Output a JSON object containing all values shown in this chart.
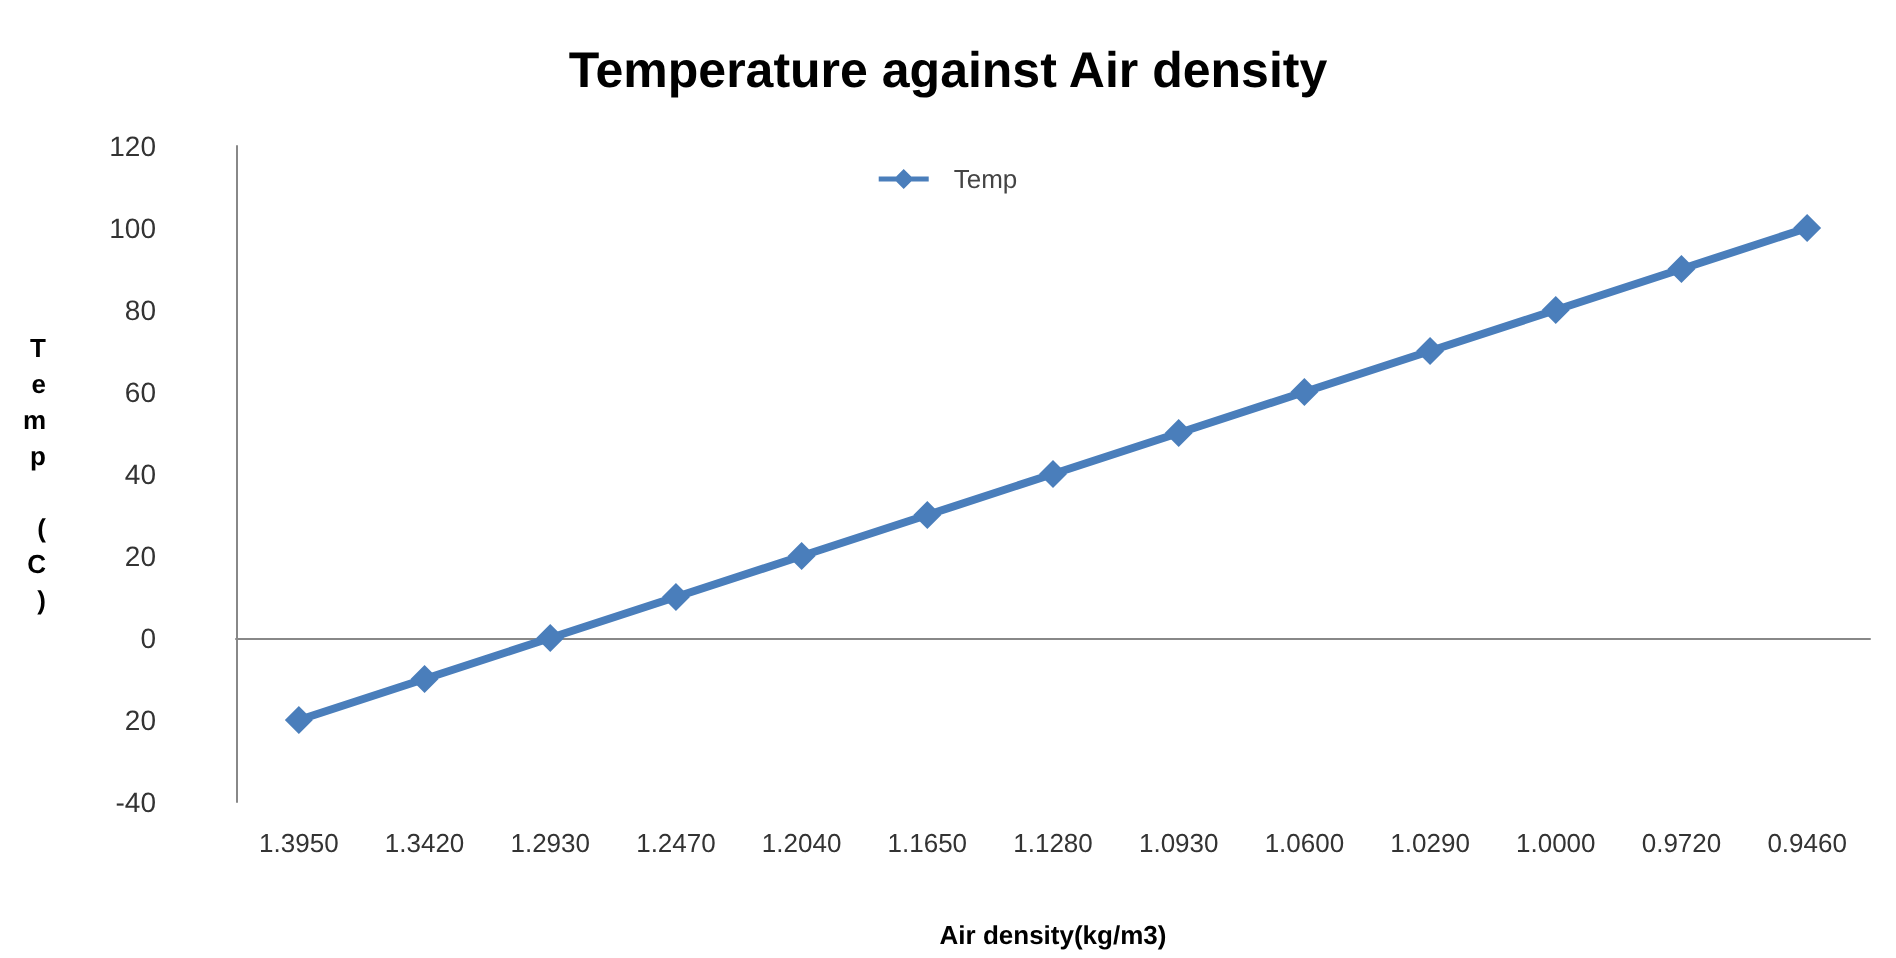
{
  "chart_data": {
    "type": "line",
    "title": "Temperature against Air density",
    "xlabel": "Air density(kg/m3)",
    "ylabel": "Temp (C)",
    "categories": [
      "1.3950",
      "1.3420",
      "1.2930",
      "1.2470",
      "1.2040",
      "1.1650",
      "1.1280",
      "1.0930",
      "1.0600",
      "1.0290",
      "1.0000",
      "0.9720",
      "0.9460"
    ],
    "series": [
      {
        "name": "Temp",
        "color": "#4a7ebb",
        "values": [
          -20,
          -10,
          0,
          10,
          20,
          30,
          40,
          50,
          60,
          70,
          80,
          90,
          100
        ]
      }
    ],
    "ylim": [
      -40,
      120
    ],
    "yticks": [
      {
        "value": -40,
        "label": "-40"
      },
      {
        "value": -20,
        "label": "20"
      },
      0,
      20,
      40,
      60,
      80,
      100,
      120
    ],
    "legend": "top",
    "marker": "diamond",
    "line_style": "solid"
  }
}
